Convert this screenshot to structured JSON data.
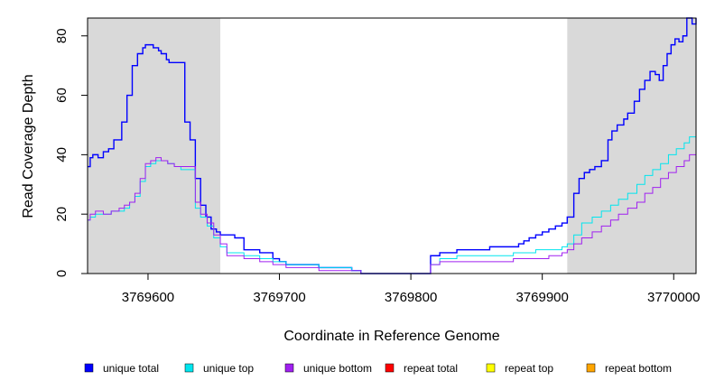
{
  "chart_data": {
    "type": "line",
    "title": "",
    "xlabel": "Coordinate in Reference Genome",
    "ylabel": "Read Coverage Depth",
    "xlim": [
      3769554,
      3770017
    ],
    "ylim": [
      0,
      86
    ],
    "xticks": [
      {
        "value": 3769600,
        "label": "3769600"
      },
      {
        "value": 3769700,
        "label": "3769700"
      },
      {
        "value": 3769800,
        "label": "3769800"
      },
      {
        "value": 3769900,
        "label": "3769900"
      },
      {
        "value": 3770000,
        "label": "3770000"
      }
    ],
    "yticks": [
      {
        "value": 0,
        "label": "0"
      },
      {
        "value": 20,
        "label": "20"
      },
      {
        "value": 40,
        "label": "40"
      },
      {
        "value": 60,
        "label": "60"
      },
      {
        "value": 80,
        "label": "80"
      }
    ],
    "shaded_regions": [
      {
        "start": 3769554,
        "end": 3769655,
        "color": "#d9d9d9"
      },
      {
        "start": 3769919,
        "end": 3770017,
        "color": "#d9d9d9"
      }
    ],
    "series": [
      {
        "name": "unique total",
        "color": "#0000ff",
        "step": true,
        "x": [
          3769554,
          3769556,
          3769558,
          3769562,
          3769566,
          3769570,
          3769574,
          3769576,
          3769580,
          3769584,
          3769588,
          3769592,
          3769596,
          3769598,
          3769600,
          3769604,
          3769608,
          3769610,
          3769614,
          3769616,
          3769620,
          3769624,
          3769628,
          3769632,
          3769636,
          3769640,
          3769644,
          3769648,
          3769652,
          3769655,
          3769660,
          3769666,
          3769673,
          3769685,
          3769695,
          3769700,
          3769705,
          3769718,
          3769730,
          3769745,
          3769755,
          3769762,
          3769800,
          3769810,
          3769815,
          3769822,
          3769835,
          3769860,
          3769878,
          3769882,
          3769886,
          3769890,
          3769895,
          3769900,
          3769905,
          3769910,
          3769915,
          3769919,
          3769924,
          3769928,
          3769932,
          3769936,
          3769940,
          3769945,
          3769950,
          3769953,
          3769957,
          3769962,
          3769965,
          3769970,
          3769974,
          3769978,
          3769982,
          3769986,
          3769989,
          3769992,
          3769995,
          3769998,
          3770001,
          3770004,
          3770007,
          3770010,
          3770014,
          3770017
        ],
        "values": [
          36,
          39,
          40,
          39,
          41,
          42,
          45,
          45,
          51,
          60,
          70,
          74,
          76,
          77,
          77,
          76,
          75,
          74,
          72,
          71,
          71,
          71,
          51,
          45,
          32,
          23,
          19,
          15,
          14,
          13,
          13,
          12,
          8,
          7,
          5,
          4,
          3,
          3,
          2,
          2,
          1,
          0,
          0,
          0,
          6,
          7,
          8,
          9,
          9,
          10,
          11,
          12,
          13,
          14,
          15,
          16,
          17,
          19,
          27,
          32,
          34,
          35,
          36,
          38,
          45,
          48,
          50,
          52,
          54,
          58,
          62,
          65,
          68,
          67,
          65,
          70,
          74,
          77,
          79,
          78,
          80,
          86,
          84,
          86
        ]
      },
      {
        "name": "unique top",
        "color": "#00e5ee",
        "step": true,
        "x": [
          3769554,
          3769556,
          3769560,
          3769566,
          3769572,
          3769578,
          3769582,
          3769586,
          3769590,
          3769594,
          3769598,
          3769602,
          3769606,
          3769610,
          3769615,
          3769620,
          3769625,
          3769630,
          3769636,
          3769640,
          3769645,
          3769650,
          3769655,
          3769660,
          3769673,
          3769685,
          3769695,
          3769705,
          3769730,
          3769755,
          3769762,
          3769800,
          3769810,
          3769815,
          3769822,
          3769835,
          3769860,
          3769878,
          3769886,
          3769895,
          3769905,
          3769915,
          3769919,
          3769924,
          3769930,
          3769938,
          3769945,
          3769952,
          3769958,
          3769965,
          3769972,
          3769978,
          3769984,
          3769990,
          3769996,
          3770002,
          3770008,
          3770012,
          3770017
        ],
        "values": [
          18,
          19,
          20,
          20,
          21,
          21,
          22,
          24,
          26,
          31,
          36,
          37,
          38,
          38,
          37,
          36,
          35,
          35,
          22,
          19,
          16,
          12,
          9,
          7,
          6,
          5,
          4,
          3,
          2,
          1,
          0,
          0,
          0,
          3,
          5,
          6,
          6,
          7,
          7,
          8,
          8,
          9,
          10,
          13,
          17,
          19,
          21,
          23,
          25,
          27,
          30,
          33,
          35,
          37,
          40,
          42,
          44,
          46,
          47
        ]
      },
      {
        "name": "unique bottom",
        "color": "#a020f0",
        "step": true,
        "x": [
          3769554,
          3769556,
          3769560,
          3769566,
          3769572,
          3769578,
          3769582,
          3769586,
          3769590,
          3769594,
          3769598,
          3769602,
          3769606,
          3769610,
          3769615,
          3769620,
          3769625,
          3769630,
          3769636,
          3769640,
          3769645,
          3769650,
          3769655,
          3769660,
          3769673,
          3769685,
          3769695,
          3769705,
          3769730,
          3769755,
          3769762,
          3769800,
          3769810,
          3769815,
          3769822,
          3769835,
          3769860,
          3769878,
          3769886,
          3769895,
          3769905,
          3769915,
          3769919,
          3769924,
          3769930,
          3769938,
          3769945,
          3769952,
          3769958,
          3769965,
          3769972,
          3769978,
          3769984,
          3769990,
          3769996,
          3770002,
          3770008,
          3770012,
          3770017
        ],
        "values": [
          18,
          20,
          21,
          20,
          21,
          22,
          23,
          24,
          27,
          32,
          37,
          38,
          39,
          38,
          37,
          36,
          36,
          36,
          24,
          20,
          17,
          13,
          10,
          6,
          5,
          4,
          3,
          2,
          1,
          1,
          0,
          0,
          0,
          3,
          4,
          4,
          4,
          5,
          5,
          5,
          6,
          7,
          8,
          10,
          12,
          14,
          16,
          18,
          20,
          22,
          24,
          27,
          29,
          32,
          34,
          36,
          38,
          40,
          40
        ]
      },
      {
        "name": "repeat total",
        "color": "#ff0000",
        "step": true,
        "x": [
          3769554,
          3770017
        ],
        "values": [
          0,
          0
        ]
      },
      {
        "name": "repeat top",
        "color": "#ffff00",
        "step": true,
        "x": [
          3769554,
          3770017
        ],
        "values": [
          0,
          0
        ]
      },
      {
        "name": "repeat bottom",
        "color": "#ffa500",
        "step": true,
        "x": [
          3769554,
          3770017
        ],
        "values": [
          0,
          0
        ]
      }
    ],
    "legend": {
      "placement": "bottom",
      "entries": [
        {
          "label": "unique total",
          "color": "#0000ff"
        },
        {
          "label": "unique top",
          "color": "#00e5ee"
        },
        {
          "label": "unique bottom",
          "color": "#a020f0"
        },
        {
          "label": "repeat total",
          "color": "#ff0000"
        },
        {
          "label": "repeat top",
          "color": "#ffff00"
        },
        {
          "label": "repeat bottom",
          "color": "#ffa500"
        }
      ]
    }
  }
}
